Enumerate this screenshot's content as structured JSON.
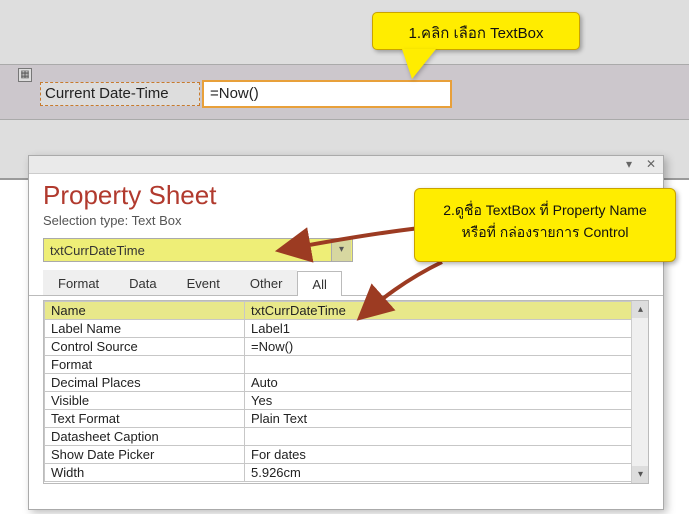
{
  "callout1": {
    "text": "1.คลิก เลือก TextBox",
    "bg": "#ffed00"
  },
  "callout2": {
    "line1": "2.ดูชื่อ TextBox ที่ Property Name",
    "line2": "หรือที่ กล่องรายการ Control",
    "bg": "#ffed00"
  },
  "design": {
    "label_text": "Current Date-Time",
    "textbox_value": "=Now()"
  },
  "propertysheet": {
    "title": "Property Sheet",
    "subtitle_prefix": "Selection type:  ",
    "selection_type": "Text Box",
    "selector_value": "txtCurrDateTime",
    "tabs": [
      "Format",
      "Data",
      "Event",
      "Other",
      "All"
    ],
    "active_tab_index": 4,
    "rows": [
      {
        "name": "Name",
        "value": "txtCurrDateTime",
        "highlight": true
      },
      {
        "name": "Label Name",
        "value": "Label1"
      },
      {
        "name": "Control Source",
        "value": "=Now()"
      },
      {
        "name": "Format",
        "value": ""
      },
      {
        "name": "Decimal Places",
        "value": "Auto"
      },
      {
        "name": "Visible",
        "value": "Yes"
      },
      {
        "name": "Text Format",
        "value": "Plain Text"
      },
      {
        "name": "Datasheet Caption",
        "value": ""
      },
      {
        "name": "Show Date Picker",
        "value": "For dates"
      },
      {
        "name": "Width",
        "value": "5.926cm"
      }
    ]
  },
  "colors": {
    "accent_arrow": "#9c3b22",
    "highlight_row": "#e8e88a",
    "title": "#b13a2e",
    "textbox_border": "#e8a03a"
  }
}
